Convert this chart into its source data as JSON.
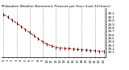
{
  "title": "Milwaukee Weather Barometric Pressure per Hour (Last 24 Hours)",
  "x_hours": [
    0,
    1,
    2,
    3,
    4,
    5,
    6,
    7,
    8,
    9,
    10,
    11,
    12,
    13,
    14,
    15,
    16,
    17,
    18,
    19,
    20,
    21,
    22,
    23
  ],
  "y_values": [
    30.18,
    30.1,
    30.02,
    29.93,
    29.84,
    29.75,
    29.66,
    29.57,
    29.48,
    29.4,
    29.33,
    29.28,
    29.24,
    29.22,
    29.21,
    29.2,
    29.19,
    29.18,
    29.17,
    29.16,
    29.15,
    29.14,
    29.13,
    29.12
  ],
  "line_color": "#cc0000",
  "marker_color": "#000000",
  "grid_color": "#999999",
  "bg_color": "#ffffff",
  "ylim_min": 28.95,
  "ylim_max": 30.35,
  "title_fontsize": 3.0,
  "tick_fontsize": 2.8,
  "ytick_labels": [
    "30.2",
    "30.1",
    "30.0",
    "29.9",
    "29.8",
    "29.7",
    "29.6",
    "29.5",
    "29.4",
    "29.3",
    "29.2",
    "29.1"
  ],
  "ytick_values": [
    30.2,
    30.1,
    30.0,
    29.9,
    29.8,
    29.7,
    29.6,
    29.5,
    29.4,
    29.3,
    29.2,
    29.1
  ],
  "grid_x": [
    0,
    3,
    6,
    9,
    12,
    15,
    18,
    21,
    23
  ]
}
